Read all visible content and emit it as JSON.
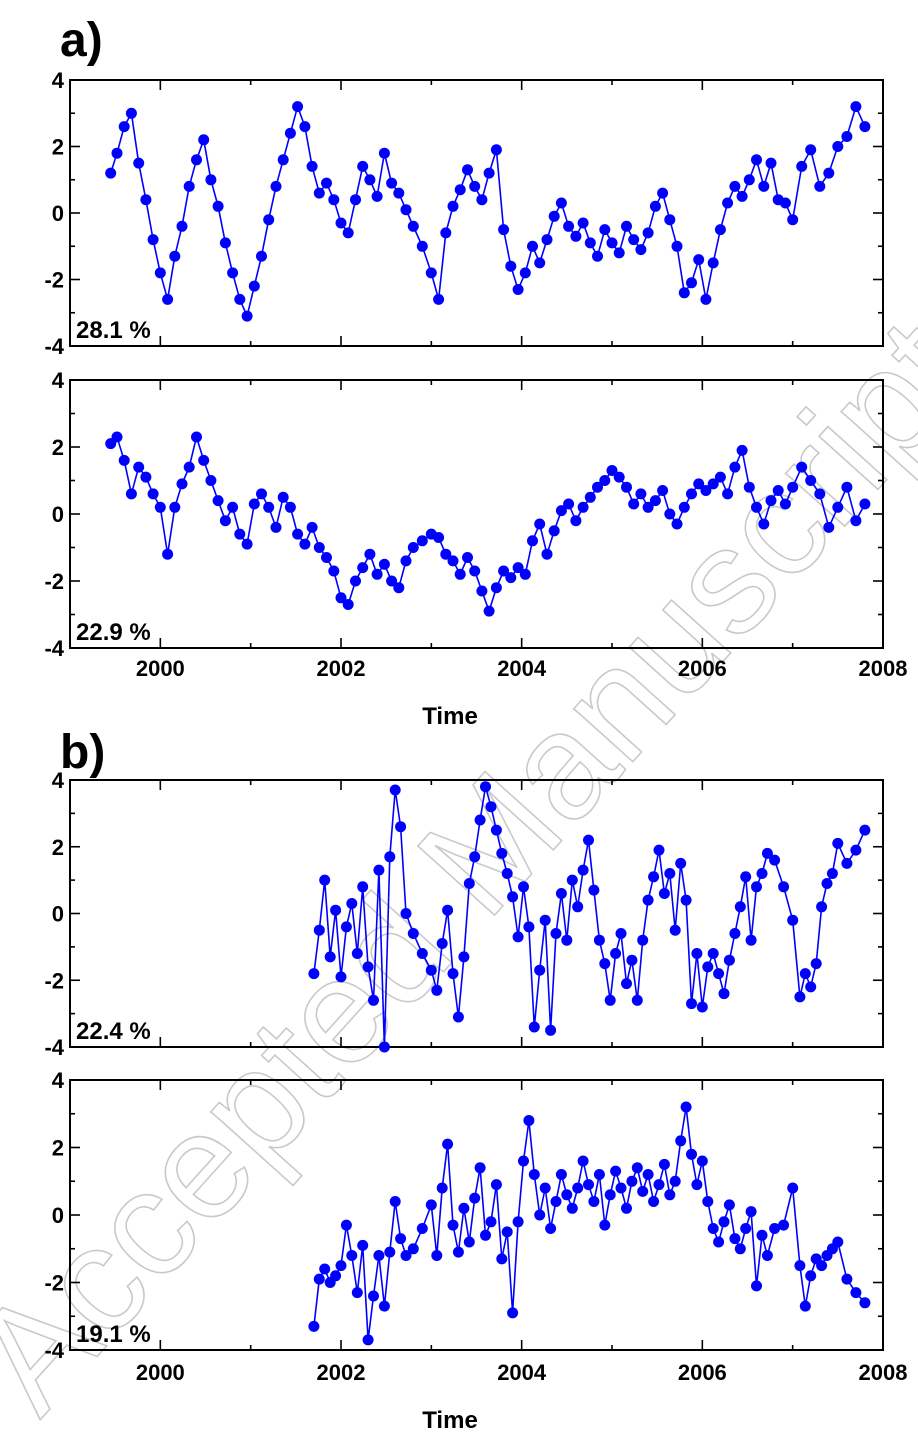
{
  "figure": {
    "watermark": "Accepted Manuscript"
  },
  "colors": {
    "series": "#0000ff",
    "axis": "#000000"
  },
  "groups": [
    {
      "label": "a)",
      "xlabel": "Time",
      "xticks": [
        "2000",
        "2002",
        "2004",
        "2006",
        "2008"
      ]
    },
    {
      "label": "b)",
      "xlabel": "Time",
      "xticks": [
        "2000",
        "2002",
        "2004",
        "2006",
        "2008"
      ]
    }
  ],
  "chart_data": [
    {
      "type": "line",
      "panel": "a-top",
      "annotation": "28.1 %",
      "xlim": [
        1999,
        2008
      ],
      "ylim": [
        -4,
        4
      ],
      "yticks": [
        "4",
        "2",
        "0",
        "-2",
        "-4"
      ],
      "marker": "circle",
      "x": [
        1999.45,
        1999.52,
        1999.6,
        1999.68,
        1999.76,
        1999.84,
        1999.92,
        2000.0,
        2000.08,
        2000.16,
        2000.24,
        2000.32,
        2000.4,
        2000.48,
        2000.56,
        2000.64,
        2000.72,
        2000.8,
        2000.88,
        2000.96,
        2001.04,
        2001.12,
        2001.2,
        2001.28,
        2001.36,
        2001.44,
        2001.52,
        2001.6,
        2001.68,
        2001.76,
        2001.84,
        2001.92,
        2002.0,
        2002.08,
        2002.16,
        2002.24,
        2002.32,
        2002.4,
        2002.48,
        2002.56,
        2002.64,
        2002.72,
        2002.8,
        2002.9,
        2003.0,
        2003.08,
        2003.16,
        2003.24,
        2003.32,
        2003.4,
        2003.48,
        2003.56,
        2003.64,
        2003.72,
        2003.8,
        2003.88,
        2003.96,
        2004.04,
        2004.12,
        2004.2,
        2004.28,
        2004.36,
        2004.44,
        2004.52,
        2004.6,
        2004.68,
        2004.76,
        2004.84,
        2004.92,
        2005.0,
        2005.08,
        2005.16,
        2005.24,
        2005.32,
        2005.4,
        2005.48,
        2005.56,
        2005.64,
        2005.72,
        2005.8,
        2005.88,
        2005.96,
        2006.04,
        2006.12,
        2006.2,
        2006.28,
        2006.36,
        2006.44,
        2006.52,
        2006.6,
        2006.68,
        2006.76,
        2006.84,
        2006.92,
        2007.0,
        2007.1,
        2007.2,
        2007.3,
        2007.4,
        2007.5,
        2007.6,
        2007.7,
        2007.8
      ],
      "y": [
        1.2,
        1.8,
        2.6,
        3.0,
        1.5,
        0.4,
        -0.8,
        -1.8,
        -2.6,
        -1.3,
        -0.4,
        0.8,
        1.6,
        2.2,
        1.0,
        0.2,
        -0.9,
        -1.8,
        -2.6,
        -3.1,
        -2.2,
        -1.3,
        -0.2,
        0.8,
        1.6,
        2.4,
        3.2,
        2.6,
        1.4,
        0.6,
        0.9,
        0.4,
        -0.3,
        -0.6,
        0.4,
        1.4,
        1.0,
        0.5,
        1.8,
        0.9,
        0.6,
        0.1,
        -0.4,
        -1.0,
        -1.8,
        -2.6,
        -0.6,
        0.2,
        0.7,
        1.3,
        0.8,
        0.4,
        1.2,
        1.9,
        -0.5,
        -1.6,
        -2.3,
        -1.8,
        -1.0,
        -1.5,
        -0.8,
        -0.1,
        0.3,
        -0.4,
        -0.7,
        -0.3,
        -0.9,
        -1.3,
        -0.5,
        -0.9,
        -1.2,
        -0.4,
        -0.8,
        -1.1,
        -0.6,
        0.2,
        0.6,
        -0.2,
        -1.0,
        -2.4,
        -2.1,
        -1.4,
        -2.6,
        -1.5,
        -0.5,
        0.3,
        0.8,
        0.5,
        1.0,
        1.6,
        0.8,
        1.5,
        0.4,
        0.3,
        -0.2,
        1.4,
        1.9,
        0.8,
        1.2,
        2.0,
        2.3,
        3.2,
        2.6
      ]
    },
    {
      "type": "line",
      "panel": "a-bottom",
      "annotation": "22.9 %",
      "xlim": [
        1999,
        2008
      ],
      "ylim": [
        -4,
        4
      ],
      "yticks": [
        "4",
        "2",
        "0",
        "-2",
        "-4"
      ],
      "marker": "circle",
      "x": [
        1999.45,
        1999.52,
        1999.6,
        1999.68,
        1999.76,
        1999.84,
        1999.92,
        2000.0,
        2000.08,
        2000.16,
        2000.24,
        2000.32,
        2000.4,
        2000.48,
        2000.56,
        2000.64,
        2000.72,
        2000.8,
        2000.88,
        2000.96,
        2001.04,
        2001.12,
        2001.2,
        2001.28,
        2001.36,
        2001.44,
        2001.52,
        2001.6,
        2001.68,
        2001.76,
        2001.84,
        2001.92,
        2002.0,
        2002.08,
        2002.16,
        2002.24,
        2002.32,
        2002.4,
        2002.48,
        2002.56,
        2002.64,
        2002.72,
        2002.8,
        2002.9,
        2003.0,
        2003.08,
        2003.16,
        2003.24,
        2003.32,
        2003.4,
        2003.48,
        2003.56,
        2003.64,
        2003.72,
        2003.8,
        2003.88,
        2003.96,
        2004.04,
        2004.12,
        2004.2,
        2004.28,
        2004.36,
        2004.44,
        2004.52,
        2004.6,
        2004.68,
        2004.76,
        2004.84,
        2004.92,
        2005.0,
        2005.08,
        2005.16,
        2005.24,
        2005.32,
        2005.4,
        2005.48,
        2005.56,
        2005.64,
        2005.72,
        2005.8,
        2005.88,
        2005.96,
        2006.04,
        2006.12,
        2006.2,
        2006.28,
        2006.36,
        2006.44,
        2006.52,
        2006.6,
        2006.68,
        2006.76,
        2006.84,
        2006.92,
        2007.0,
        2007.1,
        2007.2,
        2007.3,
        2007.4,
        2007.5,
        2007.6,
        2007.7,
        2007.8
      ],
      "y": [
        2.1,
        2.3,
        1.6,
        0.6,
        1.4,
        1.1,
        0.6,
        0.2,
        -1.2,
        0.2,
        0.9,
        1.4,
        2.3,
        1.6,
        1.0,
        0.4,
        -0.2,
        0.2,
        -0.6,
        -0.9,
        0.3,
        0.6,
        0.2,
        -0.4,
        0.5,
        0.2,
        -0.6,
        -0.9,
        -0.4,
        -1.0,
        -1.3,
        -1.7,
        -2.5,
        -2.7,
        -2.0,
        -1.6,
        -1.2,
        -1.8,
        -1.5,
        -2.0,
        -2.2,
        -1.4,
        -1.0,
        -0.8,
        -0.6,
        -0.7,
        -1.2,
        -1.4,
        -1.8,
        -1.3,
        -1.7,
        -2.3,
        -2.9,
        -2.2,
        -1.7,
        -1.9,
        -1.6,
        -1.8,
        -0.8,
        -0.3,
        -1.2,
        -0.5,
        0.1,
        0.3,
        -0.2,
        0.2,
        0.5,
        0.8,
        1.0,
        1.3,
        1.1,
        0.8,
        0.3,
        0.6,
        0.2,
        0.4,
        0.7,
        0.0,
        -0.3,
        0.2,
        0.6,
        0.9,
        0.7,
        0.9,
        1.1,
        0.6,
        1.4,
        1.9,
        0.8,
        0.2,
        -0.3,
        0.4,
        0.7,
        0.3,
        0.8,
        1.4,
        1.0,
        0.6,
        -0.4,
        0.2,
        0.8,
        -0.2,
        0.3
      ]
    },
    {
      "type": "line",
      "panel": "b-top",
      "annotation": "22.4 %",
      "xlim": [
        1999,
        2008
      ],
      "ylim": [
        -4,
        4
      ],
      "yticks": [
        "4",
        "2",
        "0",
        "-2",
        "-4"
      ],
      "marker": "circle",
      "x": [
        2001.7,
        2001.76,
        2001.82,
        2001.88,
        2001.94,
        2002.0,
        2002.06,
        2002.12,
        2002.18,
        2002.24,
        2002.3,
        2002.36,
        2002.42,
        2002.48,
        2002.54,
        2002.6,
        2002.66,
        2002.72,
        2002.8,
        2002.9,
        2003.0,
        2003.06,
        2003.12,
        2003.18,
        2003.24,
        2003.3,
        2003.36,
        2003.42,
        2003.48,
        2003.54,
        2003.6,
        2003.66,
        2003.72,
        2003.78,
        2003.84,
        2003.9,
        2003.96,
        2004.02,
        2004.08,
        2004.14,
        2004.2,
        2004.26,
        2004.32,
        2004.38,
        2004.44,
        2004.5,
        2004.56,
        2004.62,
        2004.68,
        2004.74,
        2004.8,
        2004.86,
        2004.92,
        2004.98,
        2005.04,
        2005.1,
        2005.16,
        2005.22,
        2005.28,
        2005.34,
        2005.4,
        2005.46,
        2005.52,
        2005.58,
        2005.64,
        2005.7,
        2005.76,
        2005.82,
        2005.88,
        2005.94,
        2006.0,
        2006.06,
        2006.12,
        2006.18,
        2006.24,
        2006.3,
        2006.36,
        2006.42,
        2006.48,
        2006.54,
        2006.6,
        2006.66,
        2006.72,
        2006.8,
        2006.9,
        2007.0,
        2007.08,
        2007.14,
        2007.2,
        2007.26,
        2007.32,
        2007.38,
        2007.44,
        2007.5,
        2007.6,
        2007.7,
        2007.8
      ],
      "y": [
        -1.8,
        -0.5,
        1.0,
        -1.3,
        0.1,
        -1.9,
        -0.4,
        0.3,
        -1.2,
        0.8,
        -1.6,
        -2.6,
        1.3,
        -4.0,
        1.7,
        3.7,
        2.6,
        0.0,
        -0.6,
        -1.2,
        -1.7,
        -2.3,
        -0.9,
        0.1,
        -1.8,
        -3.1,
        -1.3,
        0.9,
        1.7,
        2.8,
        3.8,
        3.2,
        2.5,
        1.8,
        1.2,
        0.5,
        -0.7,
        0.8,
        -0.4,
        -3.4,
        -1.7,
        -0.2,
        -3.5,
        -0.6,
        0.6,
        -0.8,
        1.0,
        0.2,
        1.3,
        2.2,
        0.7,
        -0.8,
        -1.5,
        -2.6,
        -1.2,
        -0.6,
        -2.1,
        -1.4,
        -2.6,
        -0.8,
        0.4,
        1.1,
        1.9,
        0.6,
        1.2,
        -0.5,
        1.5,
        0.4,
        -2.7,
        -1.2,
        -2.8,
        -1.6,
        -1.2,
        -1.8,
        -2.4,
        -1.4,
        -0.6,
        0.2,
        1.1,
        -0.8,
        0.8,
        1.2,
        1.8,
        1.6,
        0.8,
        -0.2,
        -2.5,
        -1.8,
        -2.2,
        -1.5,
        0.2,
        0.9,
        1.2,
        2.1,
        1.5,
        1.9,
        2.5
      ]
    },
    {
      "type": "line",
      "panel": "b-bottom",
      "annotation": "19.1 %",
      "xlim": [
        1999,
        2008
      ],
      "ylim": [
        -4,
        4
      ],
      "yticks": [
        "4",
        "2",
        "0",
        "-2",
        "-4"
      ],
      "marker": "circle",
      "x": [
        2001.7,
        2001.76,
        2001.82,
        2001.88,
        2001.94,
        2002.0,
        2002.06,
        2002.12,
        2002.18,
        2002.24,
        2002.3,
        2002.36,
        2002.42,
        2002.48,
        2002.54,
        2002.6,
        2002.66,
        2002.72,
        2002.8,
        2002.9,
        2003.0,
        2003.06,
        2003.12,
        2003.18,
        2003.24,
        2003.3,
        2003.36,
        2003.42,
        2003.48,
        2003.54,
        2003.6,
        2003.66,
        2003.72,
        2003.78,
        2003.84,
        2003.9,
        2003.96,
        2004.02,
        2004.08,
        2004.14,
        2004.2,
        2004.26,
        2004.32,
        2004.38,
        2004.44,
        2004.5,
        2004.56,
        2004.62,
        2004.68,
        2004.74,
        2004.8,
        2004.86,
        2004.92,
        2004.98,
        2005.04,
        2005.1,
        2005.16,
        2005.22,
        2005.28,
        2005.34,
        2005.4,
        2005.46,
        2005.52,
        2005.58,
        2005.64,
        2005.7,
        2005.76,
        2005.82,
        2005.88,
        2005.94,
        2006.0,
        2006.06,
        2006.12,
        2006.18,
        2006.24,
        2006.3,
        2006.36,
        2006.42,
        2006.48,
        2006.54,
        2006.6,
        2006.66,
        2006.72,
        2006.8,
        2006.9,
        2007.0,
        2007.08,
        2007.14,
        2007.2,
        2007.26,
        2007.32,
        2007.38,
        2007.44,
        2007.5,
        2007.6,
        2007.7,
        2007.8
      ],
      "y": [
        -3.3,
        -1.9,
        -1.6,
        -2.0,
        -1.8,
        -1.5,
        -0.3,
        -1.2,
        -2.3,
        -0.9,
        -3.7,
        -2.4,
        -1.2,
        -2.7,
        -1.1,
        0.4,
        -0.7,
        -1.2,
        -1.0,
        -0.4,
        0.3,
        -1.2,
        0.8,
        2.1,
        -0.3,
        -1.1,
        0.2,
        -0.8,
        0.5,
        1.4,
        -0.6,
        -0.2,
        0.9,
        -1.3,
        -0.5,
        -2.9,
        -0.2,
        1.6,
        2.8,
        1.2,
        0.0,
        0.8,
        -0.4,
        0.4,
        1.2,
        0.6,
        0.2,
        0.8,
        1.6,
        0.9,
        0.4,
        1.2,
        -0.3,
        0.6,
        1.3,
        0.8,
        0.2,
        1.0,
        1.4,
        0.7,
        1.2,
        0.4,
        0.9,
        1.5,
        0.6,
        1.0,
        2.2,
        3.2,
        1.8,
        0.9,
        1.6,
        0.4,
        -0.4,
        -0.8,
        -0.2,
        0.3,
        -0.7,
        -1.0,
        -0.4,
        0.1,
        -2.1,
        -0.6,
        -1.2,
        -0.4,
        -0.3,
        0.8,
        -1.5,
        -2.7,
        -1.8,
        -1.3,
        -1.5,
        -1.2,
        -1.0,
        -0.8,
        -1.9,
        -2.3,
        -2.6
      ]
    }
  ]
}
